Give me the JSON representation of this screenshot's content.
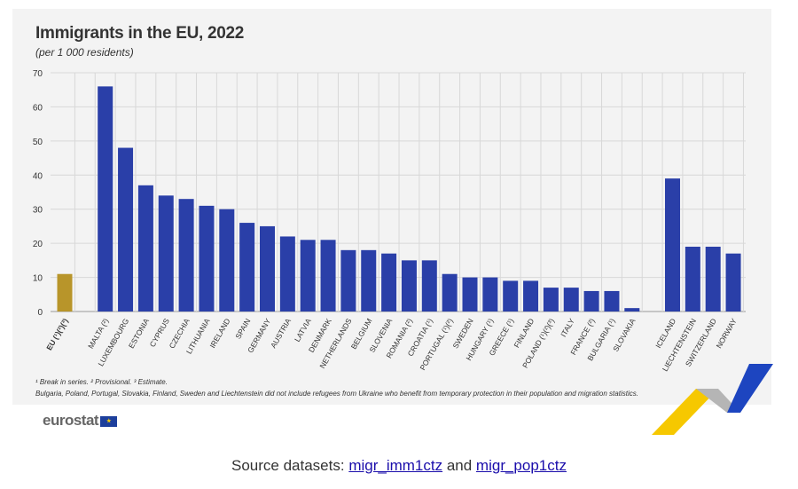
{
  "title": "Immigrants in the EU, 2022",
  "subtitle": "(per 1 000 residents)",
  "notes": [
    "¹ Break in series. ² Provisional. ³ Estimate.",
    "Bulgaria, Poland, Portugal, Slovakia, Finland, Sweden and Liechtenstein did not include refugees from Ukraine who benefit from temporary protection in their population and migration statistics."
  ],
  "logo": "eurostat",
  "source": {
    "prefix": "Source datasets: ",
    "link1": "migr_imm1ctz",
    "mid": " and ",
    "link2": "migr_pop1ctz"
  },
  "colors": {
    "eu": "#b8952a",
    "country": "#2a3fa8",
    "grid": "#d8d8d8"
  },
  "chart_data": {
    "type": "bar",
    "title": "Immigrants in the EU, 2022",
    "ylabel": "per 1 000 residents",
    "ylim": [
      0,
      70
    ],
    "yticks": [
      0,
      10,
      20,
      30,
      40,
      50,
      60,
      70
    ],
    "grid": true,
    "categories": [
      "EU (¹)(²)(³)",
      "",
      "MALTA (²)",
      "LUXEMBOURG",
      "ESTONIA",
      "CYPRUS",
      "CZECHIA",
      "LITHUANIA",
      "IRELAND",
      "SPAIN",
      "GERMANY",
      "AUSTRIA",
      "LATVIA",
      "DENMARK",
      "NETHERLANDS",
      "BELGIUM",
      "SLOVENIA",
      "ROMANIA (²)",
      "CROATIA (¹)",
      "PORTUGAL (¹)(²)",
      "SWEDEN",
      "HUNGARY (¹)",
      "GREECE (¹)",
      "FINLAND",
      "POLAND (¹)(²)(³)",
      "ITALY",
      "FRANCE (²)",
      "BULGARIA (¹)",
      "SLOVAKIA",
      "",
      "ICELAND",
      "LIECHTENSTEIN",
      "SWITZERLAND",
      "NORWAY"
    ],
    "values": [
      11,
      null,
      66,
      48,
      37,
      34,
      33,
      31,
      30,
      26,
      25,
      22,
      21,
      21,
      18,
      18,
      17,
      15,
      15,
      11,
      10,
      10,
      9,
      9,
      7,
      7,
      6,
      6,
      1,
      null,
      39,
      19,
      19,
      17
    ]
  }
}
